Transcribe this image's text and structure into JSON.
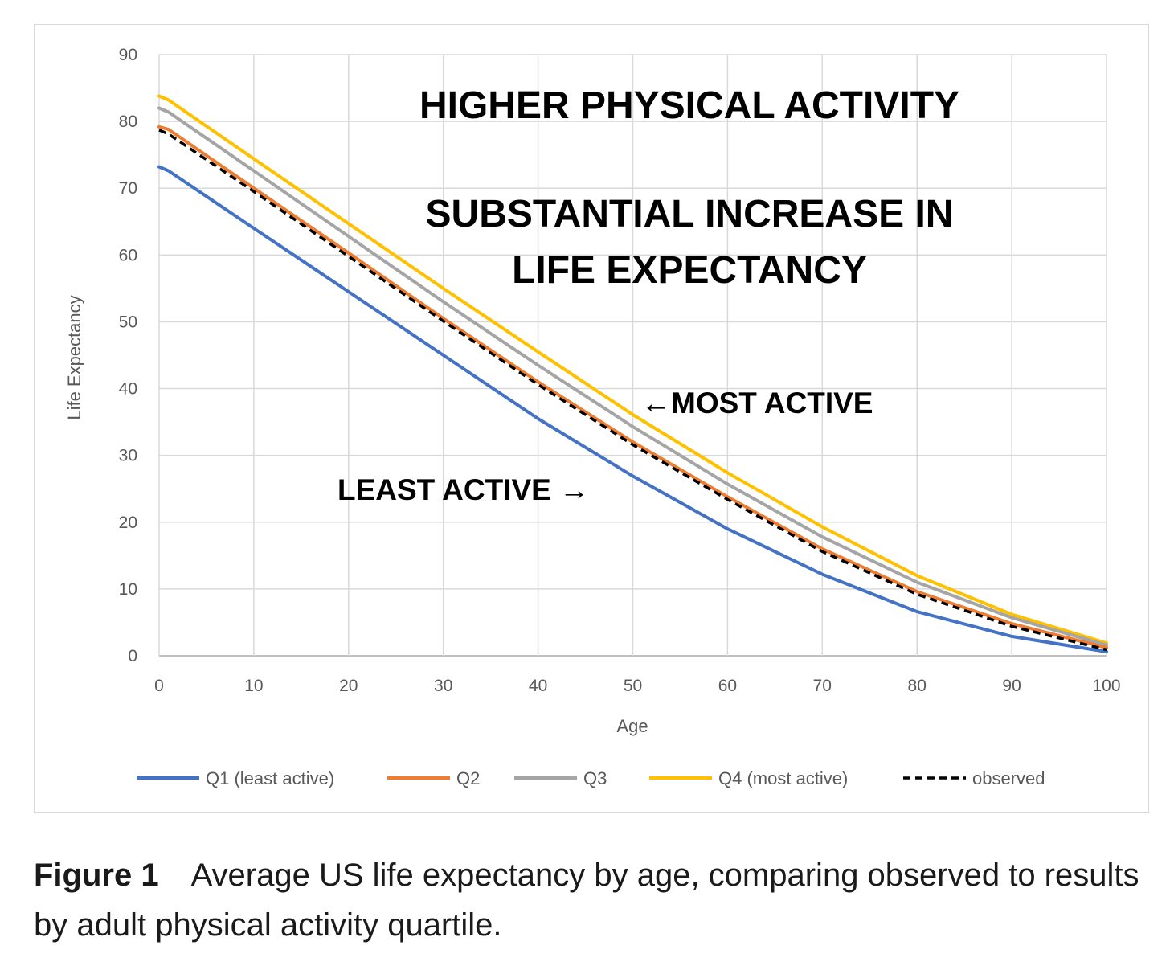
{
  "chart_data": {
    "type": "line",
    "xlabel": "Age",
    "ylabel": "Life Expectancy",
    "xlim": [
      0,
      100
    ],
    "ylim": [
      0,
      90
    ],
    "xticks": [
      0,
      10,
      20,
      30,
      40,
      50,
      60,
      70,
      80,
      90,
      100
    ],
    "yticks": [
      0,
      10,
      20,
      30,
      40,
      50,
      60,
      70,
      80,
      90
    ],
    "grid": true,
    "legend_position": "bottom",
    "x": [
      0,
      1,
      10,
      20,
      30,
      40,
      50,
      60,
      70,
      80,
      90,
      100
    ],
    "series": [
      {
        "name": "Q1 (least active)",
        "color": "#4472c4",
        "style": "solid",
        "values": [
          73.2,
          72.6,
          64.0,
          54.5,
          45.0,
          35.5,
          26.9,
          19.0,
          12.2,
          6.6,
          2.9,
          0.6
        ]
      },
      {
        "name": "Q2",
        "color": "#ed7d31",
        "style": "solid",
        "values": [
          79.2,
          78.8,
          70.0,
          60.3,
          50.5,
          41.0,
          32.0,
          23.8,
          16.0,
          9.6,
          4.8,
          1.2
        ]
      },
      {
        "name": "Q3",
        "color": "#a5a5a5",
        "style": "solid",
        "values": [
          82.0,
          81.4,
          72.6,
          62.8,
          53.0,
          43.5,
          34.3,
          25.7,
          17.8,
          11.0,
          5.7,
          1.6
        ]
      },
      {
        "name": "Q4 (most active)",
        "color": "#ffc000",
        "style": "solid",
        "values": [
          83.8,
          83.2,
          74.4,
          64.7,
          55.0,
          45.5,
          36.1,
          27.4,
          19.3,
          12.0,
          6.2,
          1.9
        ]
      },
      {
        "name": "observed",
        "color": "#000000",
        "style": "dashed",
        "values": [
          78.7,
          78.1,
          69.5,
          59.8,
          50.1,
          40.6,
          31.6,
          23.4,
          15.6,
          9.2,
          4.4,
          0.9
        ]
      }
    ],
    "annotations": [
      {
        "text": "HIGHER PHYSICAL ACTIVITY"
      },
      {
        "text": "SUBSTANTIAL INCREASE IN"
      },
      {
        "text": "LIFE EXPECTANCY"
      },
      {
        "text": "←MOST ACTIVE"
      },
      {
        "text": "LEAST ACTIVE →"
      }
    ]
  },
  "caption": {
    "label": "Figure 1",
    "text": "Average US life expectancy by age, comparing observed to results by adult physical activity quartile."
  }
}
